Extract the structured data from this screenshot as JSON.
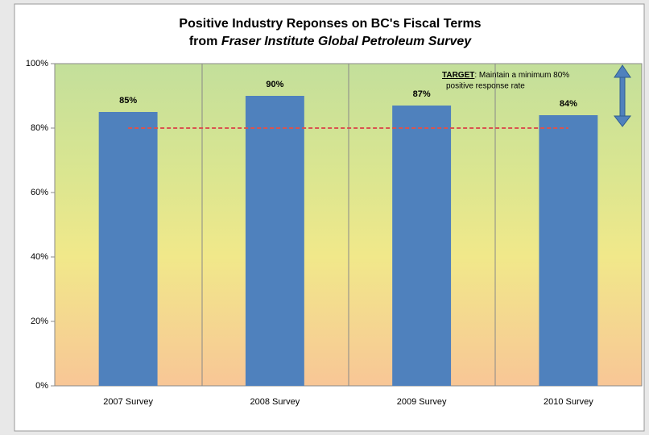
{
  "chart_data": {
    "type": "bar",
    "title": "Positive Industry Reponses on BC's Fiscal Terms",
    "subtitle": {
      "prefix": "from",
      "emphasis": "Fraser Institute Global Petroleum Survey"
    },
    "categories": [
      "2007 Survey",
      "2008 Survey",
      "2009 Survey",
      "2010 Survey"
    ],
    "values": [
      85,
      90,
      87,
      84
    ],
    "value_labels": [
      "85%",
      "90%",
      "87%",
      "84%"
    ],
    "color": "#4f81bd",
    "ylim": [
      0,
      100
    ],
    "yticks": [
      {
        "value": 0,
        "label": "0%"
      },
      {
        "value": 20,
        "label": "20%"
      },
      {
        "value": 40,
        "label": "40%"
      },
      {
        "value": 60,
        "label": "60%"
      },
      {
        "value": 80,
        "label": "80%"
      },
      {
        "value": 100,
        "label": "100%"
      }
    ],
    "target": 80,
    "target_color": "#d9534f",
    "annotation": {
      "label": "TARGET",
      "lines": [
        ": Maintain a minimum 80%",
        "positive response rate"
      ]
    }
  }
}
